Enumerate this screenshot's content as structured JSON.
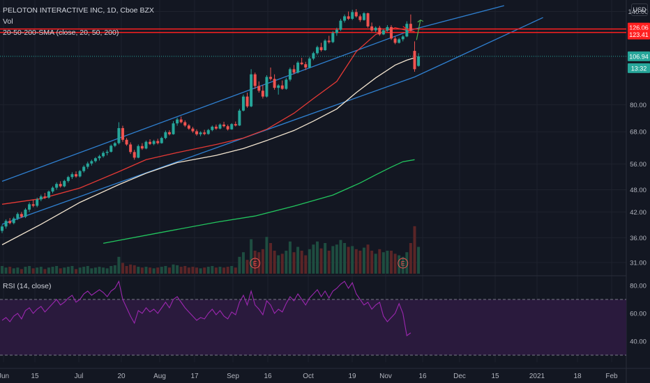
{
  "header": {
    "title": "PELOTON INTERACTIVE INC, 1D, Cboe BZX",
    "indicators": [
      "Vol",
      "20-50-200-SMA (close, 20, 50, 200)"
    ],
    "currency": "USD"
  },
  "colors": {
    "background": "#131722",
    "grid": "#1e222d",
    "up": "#26a69a",
    "down": "#ef5350",
    "sma20": "#e53935",
    "sma50": "#f3e5d0",
    "sma200": "#22c55e",
    "channel": "#2f80d1",
    "resistance": "#ff2020",
    "rsi": "#9c27b0",
    "rsi_band": "#2a1a3d",
    "text": "#b2b5be"
  },
  "price_axis": {
    "ticks": [
      "140.00",
      "80.00",
      "68.00",
      "56.00",
      "48.00",
      "42.00",
      "36.00",
      "31.00"
    ],
    "tags": [
      {
        "label": "126.06",
        "kind": "resistance"
      },
      {
        "label": "123.41",
        "kind": "resistance"
      },
      {
        "label": "106.94",
        "kind": "last"
      },
      {
        "label": "13:32",
        "kind": "countdown"
      }
    ]
  },
  "time_axis": {
    "labels": [
      "Jun",
      "15",
      "Jul",
      "20",
      "Aug",
      "17",
      "Sep",
      "16",
      "Oct",
      "19",
      "Nov",
      "16",
      "Dec",
      "15",
      "2021",
      "18",
      "Feb"
    ]
  },
  "earnings_marker": "E",
  "rsi": {
    "label": "RSI (14, close)",
    "ticks": [
      "80.00",
      "60.00",
      "40.00"
    ],
    "upper_band": 70,
    "lower_band": 30,
    "ylim": [
      25,
      85
    ]
  },
  "chart_data": {
    "type": "candlestick",
    "title": "PELOTON INTERACTIVE INC, 1D, Cboe BZX",
    "scale": "log",
    "ylim": [
      29,
      150
    ],
    "series": [
      {
        "name": "Vol"
      },
      {
        "name": "20-50-200-SMA (close, 20, 50, 200)"
      },
      {
        "name": "RSI (14, close)"
      }
    ],
    "candles": [
      [
        37.5,
        38.9,
        37.0,
        38.5
      ],
      [
        38.5,
        40.2,
        38.0,
        39.8
      ],
      [
        39.8,
        40.5,
        39.0,
        39.3
      ],
      [
        39.3,
        40.8,
        39.0,
        40.4
      ],
      [
        40.4,
        41.9,
        40.0,
        41.5
      ],
      [
        41.5,
        42.0,
        40.5,
        40.8
      ],
      [
        40.8,
        43.0,
        40.5,
        42.6
      ],
      [
        42.6,
        44.5,
        42.0,
        44.0
      ],
      [
        44.0,
        45.2,
        43.2,
        43.6
      ],
      [
        43.6,
        45.8,
        43.2,
        45.3
      ],
      [
        45.3,
        46.6,
        44.8,
        46.1
      ],
      [
        46.1,
        47.1,
        45.4,
        45.8
      ],
      [
        45.8,
        47.8,
        45.5,
        47.5
      ],
      [
        47.5,
        49.0,
        47.0,
        48.6
      ],
      [
        48.6,
        50.2,
        48.0,
        49.7
      ],
      [
        49.7,
        50.5,
        48.6,
        49.0
      ],
      [
        49.0,
        51.0,
        48.7,
        50.6
      ],
      [
        50.6,
        52.2,
        50.1,
        51.8
      ],
      [
        51.8,
        53.3,
        51.2,
        52.7
      ],
      [
        52.7,
        53.6,
        51.6,
        52.0
      ],
      [
        52.0,
        54.0,
        51.7,
        53.7
      ],
      [
        53.7,
        55.6,
        53.2,
        55.1
      ],
      [
        55.1,
        56.8,
        54.4,
        56.2
      ],
      [
        56.2,
        57.5,
        55.5,
        57.0
      ],
      [
        57.0,
        58.4,
        56.5,
        58.0
      ],
      [
        58.0,
        59.2,
        57.2,
        58.7
      ],
      [
        58.7,
        60.5,
        58.2,
        59.9
      ],
      [
        59.9,
        61.0,
        59.0,
        60.3
      ],
      [
        60.3,
        63.0,
        60.0,
        62.5
      ],
      [
        62.5,
        64.0,
        62.0,
        63.5
      ],
      [
        63.5,
        72.0,
        63.0,
        69.5
      ],
      [
        69.5,
        70.5,
        64.0,
        64.8
      ],
      [
        64.8,
        65.5,
        62.5,
        63.0
      ],
      [
        63.0,
        63.8,
        59.5,
        60.2
      ],
      [
        60.2,
        61.0,
        57.5,
        58.2
      ],
      [
        58.2,
        63.0,
        58.0,
        62.4
      ],
      [
        62.4,
        63.5,
        61.0,
        61.5
      ],
      [
        61.5,
        64.5,
        61.2,
        64.0
      ],
      [
        64.0,
        65.0,
        62.8,
        63.2
      ],
      [
        63.2,
        64.8,
        62.7,
        64.3
      ],
      [
        64.3,
        65.2,
        63.0,
        63.5
      ],
      [
        63.5,
        66.0,
        63.3,
        65.5
      ],
      [
        65.5,
        68.5,
        65.0,
        67.8
      ],
      [
        67.8,
        68.6,
        66.5,
        67.0
      ],
      [
        67.0,
        72.5,
        66.8,
        71.5
      ],
      [
        71.5,
        74.0,
        70.5,
        73.2
      ],
      [
        73.2,
        74.5,
        71.5,
        72.0
      ],
      [
        72.0,
        72.8,
        70.0,
        70.6
      ],
      [
        70.6,
        71.2,
        68.8,
        69.3
      ],
      [
        69.3,
        70.0,
        67.6,
        68.2
      ],
      [
        68.2,
        69.0,
        66.4,
        67.0
      ],
      [
        67.0,
        68.2,
        66.2,
        67.7
      ],
      [
        67.7,
        68.8,
        66.6,
        67.1
      ],
      [
        67.1,
        69.2,
        66.8,
        68.7
      ],
      [
        68.7,
        70.6,
        68.2,
        70.1
      ],
      [
        70.1,
        71.0,
        68.8,
        69.3
      ],
      [
        69.3,
        71.5,
        69.0,
        71.0
      ],
      [
        71.0,
        72.2,
        69.8,
        70.3
      ],
      [
        70.3,
        71.0,
        68.5,
        69.0
      ],
      [
        69.0,
        71.6,
        68.8,
        71.2
      ],
      [
        71.2,
        72.3,
        70.2,
        70.6
      ],
      [
        70.6,
        78.0,
        70.4,
        77.2
      ],
      [
        77.2,
        85.0,
        76.8,
        84.0
      ],
      [
        84.0,
        86.0,
        78.5,
        79.2
      ],
      [
        79.2,
        99.0,
        78.8,
        96.0
      ],
      [
        96.0,
        97.0,
        88.0,
        89.5
      ],
      [
        89.5,
        92.0,
        86.0,
        87.0
      ],
      [
        87.0,
        90.0,
        83.0,
        84.0
      ],
      [
        84.0,
        95.5,
        83.5,
        94.5
      ],
      [
        94.5,
        100.0,
        92.5,
        93.4
      ],
      [
        93.4,
        96.0,
        87.5,
        88.5
      ],
      [
        88.5,
        90.5,
        85.0,
        89.8
      ],
      [
        89.8,
        92.5,
        87.5,
        88.0
      ],
      [
        88.0,
        94.0,
        87.5,
        93.0
      ],
      [
        93.0,
        100.0,
        92.0,
        99.0
      ],
      [
        99.0,
        101.5,
        96.0,
        97.0
      ],
      [
        97.0,
        104.0,
        96.5,
        103.0
      ],
      [
        103.0,
        106.0,
        101.5,
        102.0
      ],
      [
        102.0,
        103.5,
        98.5,
        100.0
      ],
      [
        100.0,
        106.5,
        99.5,
        105.5
      ],
      [
        105.5,
        110.0,
        104.5,
        109.0
      ],
      [
        109.0,
        114.0,
        108.0,
        113.0
      ],
      [
        113.0,
        116.0,
        110.0,
        111.0
      ],
      [
        111.0,
        118.5,
        110.5,
        117.5
      ],
      [
        117.5,
        121.0,
        115.5,
        116.5
      ],
      [
        116.5,
        124.5,
        115.8,
        123.0
      ],
      [
        123.0,
        127.0,
        121.0,
        125.5
      ],
      [
        125.5,
        134.0,
        124.5,
        132.5
      ],
      [
        132.5,
        137.5,
        131.0,
        136.0
      ],
      [
        136.0,
        140.0,
        133.0,
        134.0
      ],
      [
        134.0,
        141.5,
        133.0,
        139.5
      ],
      [
        139.5,
        142.0,
        135.0,
        136.0
      ],
      [
        136.0,
        137.5,
        131.5,
        133.0
      ],
      [
        133.0,
        139.5,
        132.5,
        138.5
      ],
      [
        138.5,
        139.0,
        127.0,
        128.0
      ],
      [
        128.0,
        131.0,
        124.0,
        125.0
      ],
      [
        125.0,
        128.0,
        123.5,
        127.0
      ],
      [
        127.0,
        128.5,
        121.0,
        122.0
      ],
      [
        122.0,
        126.0,
        121.5,
        125.0
      ],
      [
        125.0,
        129.0,
        124.0,
        127.5
      ],
      [
        127.5,
        129.0,
        118.0,
        119.0
      ],
      [
        119.0,
        120.5,
        115.0,
        116.0
      ],
      [
        116.0,
        119.5,
        115.5,
        118.5
      ],
      [
        118.5,
        121.5,
        117.0,
        120.5
      ],
      [
        120.5,
        132.0,
        120.0,
        130.0
      ],
      [
        130.0,
        137.5,
        124.0,
        125.0
      ],
      [
        110.5,
        117.0,
        97.5,
        99.0
      ],
      [
        101.0,
        109.0,
        100.5,
        106.94
      ]
    ],
    "volume_relative": [
      0.1,
      0.08,
      0.09,
      0.07,
      0.08,
      0.06,
      0.09,
      0.1,
      0.07,
      0.08,
      0.09,
      0.06,
      0.08,
      0.09,
      0.1,
      0.07,
      0.08,
      0.09,
      0.1,
      0.06,
      0.08,
      0.09,
      0.1,
      0.07,
      0.08,
      0.09,
      0.08,
      0.07,
      0.1,
      0.11,
      0.22,
      0.14,
      0.1,
      0.12,
      0.11,
      0.09,
      0.08,
      0.09,
      0.08,
      0.07,
      0.08,
      0.09,
      0.1,
      0.08,
      0.12,
      0.11,
      0.09,
      0.1,
      0.08,
      0.09,
      0.08,
      0.07,
      0.08,
      0.09,
      0.1,
      0.08,
      0.09,
      0.08,
      0.09,
      0.1,
      0.08,
      0.22,
      0.28,
      0.18,
      0.45,
      0.3,
      0.28,
      0.32,
      0.48,
      0.4,
      0.3,
      0.24,
      0.26,
      0.3,
      0.42,
      0.28,
      0.35,
      0.3,
      0.24,
      0.32,
      0.38,
      0.42,
      0.33,
      0.4,
      0.3,
      0.36,
      0.38,
      0.44,
      0.4,
      0.35,
      0.36,
      0.32,
      0.3,
      0.34,
      0.38,
      0.3,
      0.26,
      0.32,
      0.28,
      0.3,
      0.3,
      0.26,
      0.24,
      0.22,
      0.28,
      0.4,
      0.62,
      0.35
    ],
    "sma20": [
      [
        0,
        44.0
      ],
      [
        10,
        45.5
      ],
      [
        20,
        48.5
      ],
      [
        30,
        53.5
      ],
      [
        37,
        57.5
      ],
      [
        45,
        60.0
      ],
      [
        55,
        63.0
      ],
      [
        62,
        65.5
      ],
      [
        68,
        69.0
      ],
      [
        75,
        76.0
      ],
      [
        80,
        83.0
      ],
      [
        86,
        92.0
      ],
      [
        91,
        110.0
      ],
      [
        96,
        122.0
      ],
      [
        101,
        127.0
      ],
      [
        104,
        125.0
      ],
      [
        106,
        124.0
      ]
    ],
    "sma50": [
      [
        0,
        34.5
      ],
      [
        10,
        39.0
      ],
      [
        20,
        44.5
      ],
      [
        30,
        49.5
      ],
      [
        37,
        53.0
      ],
      [
        45,
        56.5
      ],
      [
        55,
        59.0
      ],
      [
        62,
        61.5
      ],
      [
        68,
        64.5
      ],
      [
        75,
        68.5
      ],
      [
        80,
        72.5
      ],
      [
        86,
        78.0
      ],
      [
        91,
        86.0
      ],
      [
        96,
        94.0
      ],
      [
        101,
        101.5
      ],
      [
        104,
        104.5
      ],
      [
        106,
        106.0
      ]
    ],
    "sma200": [
      [
        26,
        34.8
      ],
      [
        40,
        37.0
      ],
      [
        55,
        39.5
      ],
      [
        65,
        41.0
      ],
      [
        75,
        43.5
      ],
      [
        85,
        46.5
      ],
      [
        92,
        50.0
      ],
      [
        96,
        52.5
      ],
      [
        100,
        55.0
      ],
      [
        103,
        56.8
      ],
      [
        106,
        57.5
      ]
    ],
    "channel_upper": [
      [
        0,
        50.5
      ],
      [
        106,
        126.0
      ],
      [
        129,
        145.0
      ]
    ],
    "channel_lower": [
      [
        0,
        39.0
      ],
      [
        106,
        94.5
      ],
      [
        139,
        135.0
      ]
    ],
    "resistance_levels": [
      126.06,
      123.41
    ],
    "last_price": 106.94,
    "rsi_values": [
      55,
      57,
      54,
      58,
      60,
      56,
      62,
      64,
      60,
      63,
      65,
      61,
      64,
      67,
      70,
      66,
      68,
      71,
      73,
      68,
      70,
      74,
      76,
      73,
      75,
      77,
      75,
      72,
      76,
      78,
      83,
      70,
      64,
      58,
      53,
      62,
      60,
      64,
      61,
      63,
      60,
      64,
      68,
      64,
      70,
      72,
      68,
      64,
      61,
      58,
      55,
      57,
      56,
      60,
      63,
      59,
      62,
      58,
      56,
      61,
      59,
      68,
      73,
      66,
      76,
      66,
      63,
      59,
      69,
      66,
      60,
      63,
      61,
      67,
      72,
      69,
      74,
      70,
      66,
      71,
      74,
      77,
      72,
      76,
      71,
      76,
      78,
      81,
      83,
      78,
      82,
      74,
      70,
      66,
      68,
      63,
      66,
      68,
      58,
      54,
      57,
      60,
      67,
      60,
      44,
      46
    ]
  }
}
